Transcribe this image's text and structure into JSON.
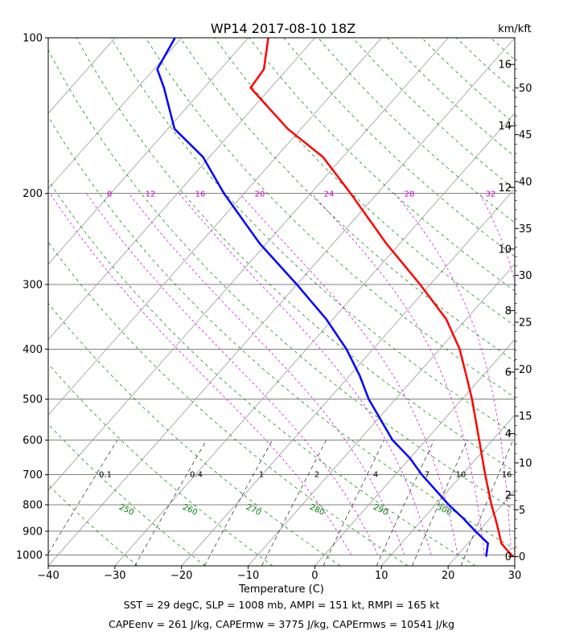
{
  "chart_data": {
    "type": "line",
    "title": "WP14 2017-08-10 18Z",
    "xlabel": "Temperature (C)",
    "ylabel": "",
    "xlim": [
      -40,
      30
    ],
    "ylim": [
      1050,
      100
    ],
    "y_scale": "log",
    "x_ticks": [
      "−40",
      "−30",
      "−20",
      "−10",
      "0",
      "10",
      "20",
      "30"
    ],
    "x_tick_values": [
      -40,
      -30,
      -20,
      -10,
      0,
      10,
      20,
      30
    ],
    "p_ticks": [
      100,
      200,
      300,
      400,
      500,
      600,
      700,
      800,
      900,
      1000
    ],
    "right_axis_label": "km/kft",
    "km_ticks": [
      "0",
      "2",
      "4",
      "6",
      "8",
      "10",
      "12",
      "14",
      "16"
    ],
    "kft_ticks": [
      "0",
      "5",
      "10",
      "15",
      "20",
      "25",
      "30",
      "35",
      "40",
      "45",
      "50"
    ],
    "mixing_ratio_labels": [
      "8",
      "12",
      "16",
      "20",
      "24",
      "28",
      "32"
    ],
    "mixing_ratio_label_pressure": 200,
    "lower_labels": [
      "0.1",
      "0.4",
      "1",
      "2",
      "4",
      "7",
      "10",
      "16"
    ],
    "lower_label_pressure": 700,
    "theta_labels": [
      "250",
      "260",
      "270",
      "280",
      "290",
      "300"
    ],
    "colors": {
      "temperature": "#ff0000",
      "dewpoint": "#0000ff",
      "dry_adiabats": "#008000",
      "moist_adiabats": "#cc00cc",
      "isotherms": "#999999",
      "isobars": "#000000"
    },
    "grid": true,
    "series": [
      {
        "key": "temperature",
        "values": [
          {
            "p": 1008,
            "t": 28.5
          },
          {
            "p": 950,
            "t": 25.0
          },
          {
            "p": 900,
            "t": 23.0
          },
          {
            "p": 850,
            "t": 20.8
          },
          {
            "p": 800,
            "t": 18.4
          },
          {
            "p": 700,
            "t": 13.5
          },
          {
            "p": 600,
            "t": 8.0
          },
          {
            "p": 500,
            "t": 1.5
          },
          {
            "p": 450,
            "t": -2.5
          },
          {
            "p": 400,
            "t": -7.0
          },
          {
            "p": 350,
            "t": -13.0
          },
          {
            "p": 300,
            "t": -21.5
          },
          {
            "p": 250,
            "t": -32.0
          },
          {
            "p": 200,
            "t": -44.0
          },
          {
            "p": 170,
            "t": -53.0
          },
          {
            "p": 150,
            "t": -62.0
          },
          {
            "p": 125,
            "t": -73.0
          },
          {
            "p": 115,
            "t": -73.5
          },
          {
            "p": 100,
            "t": -77.0
          }
        ]
      },
      {
        "key": "dewpoint",
        "values": [
          {
            "p": 1008,
            "t": 24.5
          },
          {
            "p": 950,
            "t": 23.0
          },
          {
            "p": 900,
            "t": 19.5
          },
          {
            "p": 850,
            "t": 16.0
          },
          {
            "p": 800,
            "t": 12.0
          },
          {
            "p": 700,
            "t": 4.0
          },
          {
            "p": 650,
            "t": 0.0
          },
          {
            "p": 600,
            "t": -5.0
          },
          {
            "p": 500,
            "t": -14.0
          },
          {
            "p": 450,
            "t": -18.5
          },
          {
            "p": 400,
            "t": -24.0
          },
          {
            "p": 350,
            "t": -31.0
          },
          {
            "p": 300,
            "t": -40.0
          },
          {
            "p": 250,
            "t": -51.0
          },
          {
            "p": 200,
            "t": -63.0
          },
          {
            "p": 170,
            "t": -71.0
          },
          {
            "p": 150,
            "t": -79.0
          },
          {
            "p": 125,
            "t": -86.0
          },
          {
            "p": 115,
            "t": -89.5
          },
          {
            "p": 100,
            "t": -91.0
          }
        ]
      }
    ]
  },
  "footer": {
    "line1": "SST = 29 degC, SLP = 1008 mb, AMPI = 151 kt, RMPI = 165 kt",
    "line2": "CAPEenv = 261 J/kg, CAPErmw = 3775 J/kg, CAPErmws = 10541 J/kg"
  }
}
